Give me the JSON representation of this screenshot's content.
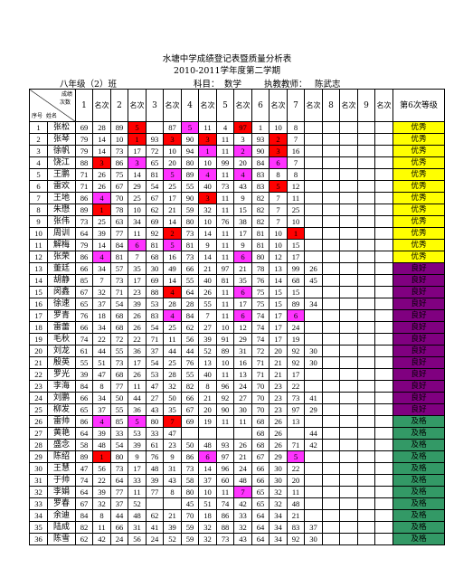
{
  "title": "水塘中学成绩登记表暨质量分析表",
  "subtitle": "2010-2011学年度第二学期",
  "info": {
    "class_label": "八年级（2）班",
    "subject_label": "科目：",
    "subject_value": "数学",
    "teacher_label": "执教教师：",
    "teacher_value": "陈武志"
  },
  "header": {
    "corner_top": "成绩",
    "corner_mid": "次数",
    "corner_left": "序号",
    "corner_name": "姓名",
    "exam_numbers": [
      "1",
      "2",
      "3",
      "4",
      "5",
      "6",
      "7",
      "8",
      "9"
    ],
    "rank_label": "名次",
    "level_label": "第6次等级"
  },
  "colors": {
    "red": "#ff0000",
    "magenta": "#ff33ff",
    "yellow": "#ffff00",
    "purple": "#800080",
    "green": "#339966"
  },
  "rows": [
    {
      "no": "1",
      "name": "张松",
      "c": [
        "69",
        "28",
        "89",
        "5",
        "",
        "87",
        "5",
        "11",
        "4",
        "97",
        "1",
        "10",
        "8"
      ],
      "hl": {
        "3": "red",
        "6": "mag",
        "9": "red"
      },
      "level": "优秀",
      "lc": "yel"
    },
    {
      "no": "2",
      "name": "张琴",
      "c": [
        "79",
        "14",
        "10",
        "1",
        "93",
        "3",
        "90",
        "3",
        "11",
        "3",
        "93",
        "2",
        "7"
      ],
      "hl": {
        "3": "red",
        "5": "red",
        "7": "red",
        "11": "red"
      },
      "level": "优秀",
      "lc": "yel"
    },
    {
      "no": "3",
      "name": "徐帆",
      "c": [
        "79",
        "14",
        "73",
        "17",
        "72",
        "10",
        "94",
        "1",
        "11",
        "2",
        "90",
        "3",
        "16"
      ],
      "hl": {
        "7": "mag",
        "9": "mag",
        "11": "red"
      },
      "level": "优秀",
      "lc": "yel"
    },
    {
      "no": "4",
      "name": "饶江",
      "c": [
        "88",
        "3",
        "86",
        "3",
        "65",
        "20",
        "80",
        "10",
        "99",
        "20",
        "84",
        "6",
        "7"
      ],
      "hl": {
        "1": "red",
        "3": "mag",
        "11": "mag"
      },
      "level": "优秀",
      "lc": "yel"
    },
    {
      "no": "5",
      "name": "王鹏",
      "c": [
        "71",
        "26",
        "75",
        "14",
        "81",
        "5",
        "89",
        "4",
        "11",
        "4",
        "83",
        "8",
        "8"
      ],
      "hl": {
        "5": "mag",
        "7": "mag",
        "9": "mag"
      },
      "level": "优秀",
      "lc": "yel"
    },
    {
      "no": "6",
      "name": "雷欢",
      "c": [
        "71",
        "26",
        "67",
        "29",
        "54",
        "25",
        "55",
        "40",
        "73",
        "43",
        "83",
        "5",
        "12"
      ],
      "hl": {
        "11": "red"
      },
      "level": "优秀",
      "lc": "yel"
    },
    {
      "no": "7",
      "name": "王地",
      "c": [
        "86",
        "4",
        "70",
        "25",
        "67",
        "17",
        "90",
        "3",
        "11",
        "9",
        "82",
        "7",
        "11"
      ],
      "hl": {
        "1": "mag",
        "7": "red"
      },
      "level": "优秀",
      "lc": "yel"
    },
    {
      "no": "8",
      "name": "朱懋",
      "c": [
        "89",
        "1",
        "78",
        "10",
        "62",
        "21",
        "59",
        "32",
        "11",
        "15",
        "82",
        "7",
        "25"
      ],
      "hl": {
        "1": "red"
      },
      "level": "优秀",
      "lc": "yel"
    },
    {
      "no": "9",
      "name": "张伟",
      "c": [
        "73",
        "25",
        "63",
        "34",
        "69",
        "14",
        "80",
        "10",
        "76",
        "38",
        "82",
        "7",
        "10"
      ],
      "hl": {},
      "level": "优秀",
      "lc": "yel"
    },
    {
      "no": "10",
      "name": "周训",
      "c": [
        "64",
        "39",
        "77",
        "11",
        "92",
        "2",
        "73",
        "14",
        "11",
        "17",
        "81",
        "10",
        "1"
      ],
      "hl": {
        "5": "red",
        "12": "red"
      },
      "level": "优秀",
      "lc": "yel"
    },
    {
      "no": "11",
      "name": "解梅",
      "c": [
        "79",
        "14",
        "84",
        "6",
        "81",
        "5",
        "81",
        "9",
        "11",
        "9",
        "81",
        "10",
        "15"
      ],
      "hl": {
        "3": "mag",
        "5": "mag"
      },
      "level": "优秀",
      "lc": "yel"
    },
    {
      "no": "12",
      "name": "张荣",
      "c": [
        "86",
        "4",
        "81",
        "7",
        "68",
        "16",
        "73",
        "14",
        "11",
        "6",
        "80",
        "12",
        "17"
      ],
      "hl": {
        "1": "mag",
        "9": "mag"
      },
      "level": "优秀",
      "lc": "yel"
    },
    {
      "no": "13",
      "name": "董廷",
      "c": [
        "66",
        "34",
        "57",
        "35",
        "30",
        "49",
        "66",
        "21",
        "97",
        "21",
        "78",
        "13",
        "99",
        "26"
      ],
      "hl": {},
      "level": "良好",
      "lc": "pur"
    },
    {
      "no": "14",
      "name": "胡静",
      "c": [
        "85",
        "7",
        "73",
        "17",
        "69",
        "14",
        "55",
        "40",
        "81",
        "35",
        "76",
        "14",
        "68",
        "45"
      ],
      "hl": {},
      "level": "良好",
      "lc": "pur"
    },
    {
      "no": "15",
      "name": "闵鑫",
      "c": [
        "67",
        "32",
        "71",
        "23",
        "88",
        "4",
        "64",
        "26",
        "11",
        "6",
        "75",
        "15",
        "15"
      ],
      "hl": {
        "5": "red",
        "9": "mag"
      },
      "level": "良好",
      "lc": "pur"
    },
    {
      "no": "16",
      "name": "徐速",
      "c": [
        "65",
        "37",
        "54",
        "39",
        "53",
        "28",
        "28",
        "55",
        "11",
        "17",
        "75",
        "15",
        "89",
        "34"
      ],
      "hl": {},
      "level": "良好",
      "lc": "pur"
    },
    {
      "no": "17",
      "name": "罗青",
      "c": [
        "76",
        "18",
        "68",
        "26",
        "83",
        "4",
        "84",
        "7",
        "11",
        "6",
        "74",
        "17",
        "6"
      ],
      "hl": {
        "5": "mag",
        "9": "mag",
        "12": "mag"
      },
      "level": "良好",
      "lc": "pur"
    },
    {
      "no": "18",
      "name": "雷蕾",
      "c": [
        "66",
        "34",
        "68",
        "26",
        "54",
        "25",
        "62",
        "27",
        "10",
        "12",
        "74",
        "17",
        "24"
      ],
      "hl": {},
      "level": "良好",
      "lc": "pur"
    },
    {
      "no": "19",
      "name": "毛秋",
      "c": [
        "74",
        "22",
        "72",
        "22",
        "71",
        "11",
        "56",
        "39",
        "91",
        "29",
        "74",
        "17",
        "19"
      ],
      "hl": {},
      "level": "良好",
      "lc": "pur"
    },
    {
      "no": "20",
      "name": "刘龙",
      "c": [
        "61",
        "44",
        "55",
        "36",
        "37",
        "44",
        "44",
        "52",
        "89",
        "31",
        "72",
        "20",
        "92",
        "30"
      ],
      "hl": {},
      "level": "良好",
      "lc": "pur"
    },
    {
      "no": "21",
      "name": "殷英",
      "c": [
        "55",
        "51",
        "73",
        "17",
        "54",
        "25",
        "76",
        "13",
        "10",
        "16",
        "71",
        "21",
        "92",
        "30"
      ],
      "hl": {},
      "level": "良好",
      "lc": "pur"
    },
    {
      "no": "22",
      "name": "罗光",
      "c": [
        "39",
        "47",
        "68",
        "26",
        "53",
        "28",
        "55",
        "40",
        "11",
        "13",
        "71",
        "21",
        "17"
      ],
      "hl": {},
      "level": "良好",
      "lc": "pur"
    },
    {
      "no": "23",
      "name": "李海",
      "c": [
        "84",
        "8",
        "77",
        "11",
        "47",
        "32",
        "82",
        "8",
        "96",
        "24",
        "70",
        "23",
        "22"
      ],
      "hl": {},
      "level": "良好",
      "lc": "pur"
    },
    {
      "no": "24",
      "name": "刘鹏",
      "c": [
        "66",
        "34",
        "50",
        "44",
        "27",
        "50",
        "66",
        "21",
        "92",
        "27",
        "70",
        "23",
        "73",
        "41"
      ],
      "hl": {},
      "level": "良好",
      "lc": "pur"
    },
    {
      "no": "25",
      "name": "柳发",
      "c": [
        "65",
        "37",
        "55",
        "36",
        "43",
        "35",
        "67",
        "20",
        "90",
        "30",
        "70",
        "23",
        "97",
        "29"
      ],
      "hl": {},
      "level": "良好",
      "lc": "pur"
    },
    {
      "no": "26",
      "name": "雷帅",
      "c": [
        "86",
        "4",
        "85",
        "5",
        "80",
        "7",
        "69",
        "19",
        "11",
        "11",
        "68",
        "26",
        "13"
      ],
      "hl": {
        "1": "mag",
        "3": "mag",
        "5": "red"
      },
      "level": "及格",
      "lc": "grn"
    },
    {
      "no": "27",
      "name": "黄艳",
      "c": [
        "64",
        "39",
        "33",
        "53",
        "33",
        "47",
        "",
        "",
        "",
        "",
        "68",
        "26",
        "",
        "44"
      ],
      "hl": {},
      "level": "及格",
      "lc": "grn"
    },
    {
      "no": "28",
      "name": "盛念",
      "c": [
        "58",
        "48",
        "54",
        "39",
        "61",
        "23",
        "50",
        "48",
        "93",
        "26",
        "68",
        "26",
        "71",
        "42"
      ],
      "hl": {},
      "level": "及格",
      "lc": "grn"
    },
    {
      "no": "29",
      "name": "陈绍",
      "c": [
        "89",
        "1",
        "80",
        "9",
        "76",
        "9",
        "86",
        "6",
        "97",
        "21",
        "67",
        "29",
        "5"
      ],
      "hl": {
        "1": "red",
        "7": "mag",
        "12": "mag"
      },
      "level": "及格",
      "lc": "grn"
    },
    {
      "no": "30",
      "name": "王慧",
      "c": [
        "47",
        "56",
        "73",
        "17",
        "48",
        "31",
        "73",
        "14",
        "96",
        "24",
        "66",
        "30",
        "22"
      ],
      "hl": {},
      "level": "及格",
      "lc": "grn"
    },
    {
      "no": "31",
      "name": "于帅",
      "c": [
        "74",
        "22",
        "64",
        "33",
        "39",
        "43",
        "58",
        "37",
        "60",
        "48",
        "66",
        "30",
        "20"
      ],
      "hl": {},
      "level": "及格",
      "lc": "grn"
    },
    {
      "no": "32",
      "name": "李娟",
      "c": [
        "64",
        "39",
        "77",
        "11",
        "77",
        "8",
        "80",
        "10",
        "11",
        "7",
        "65",
        "32",
        "11"
      ],
      "hl": {
        "9": "mag"
      },
      "level": "及格",
      "lc": "grn"
    },
    {
      "no": "33",
      "name": "罗春",
      "c": [
        "67",
        "32",
        "37",
        "52",
        "",
        "",
        "45",
        "51",
        "74",
        "42",
        "65",
        "32",
        "48"
      ],
      "hl": {},
      "level": "及格",
      "lc": "grn"
    },
    {
      "no": "34",
      "name": "余迪",
      "c": [
        "84",
        "8",
        "44",
        "48",
        "62",
        "21",
        "70",
        "18",
        "86",
        "33",
        "64",
        "34",
        "21"
      ],
      "hl": {},
      "level": "及格",
      "lc": "grn"
    },
    {
      "no": "35",
      "name": "陆成",
      "c": [
        "82",
        "11",
        "66",
        "31",
        "41",
        "39",
        "59",
        "32",
        "88",
        "32",
        "64",
        "34",
        "83",
        "37"
      ],
      "hl": {},
      "level": "及格",
      "lc": "grn"
    },
    {
      "no": "36",
      "name": "陈雪",
      "c": [
        "62",
        "42",
        "24",
        "56",
        "24",
        "52",
        "59",
        "32",
        "73",
        "43",
        "64",
        "34",
        "92",
        "30"
      ],
      "hl": {},
      "level": "及格",
      "lc": "grn"
    }
  ]
}
